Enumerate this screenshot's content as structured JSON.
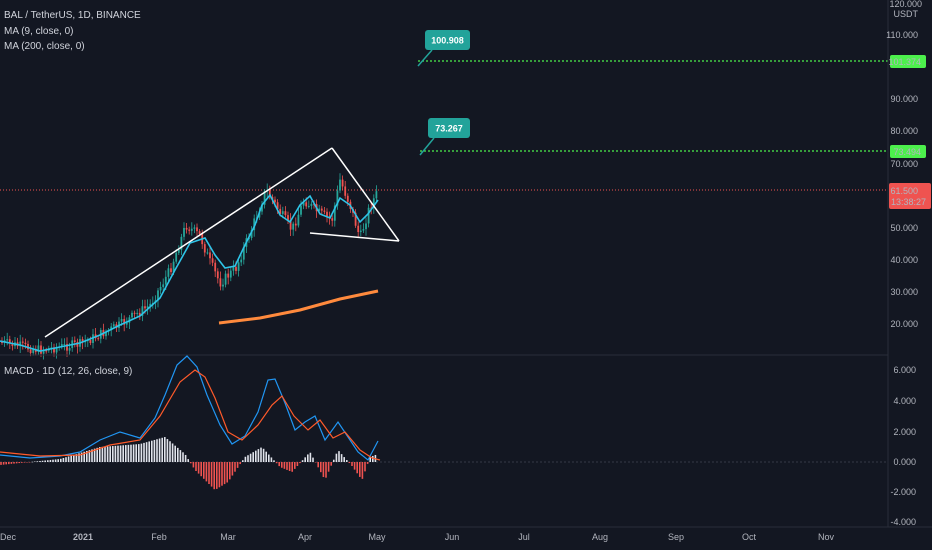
{
  "header": {
    "symbol": "BAL / TetherUS, 1D, BINANCE",
    "ma9": "MA (9, close, 0)",
    "ma200": "MA (200, close, 0)",
    "macd": "MACD · 1D (12, 26, close, 9)"
  },
  "price_axis": {
    "unit": "USDT",
    "ticks": [
      "120.000",
      "110.000",
      "90.000",
      "80.000",
      "70.000",
      "50.000",
      "40.000",
      "30.000",
      "20.000"
    ],
    "current_price": "61.500",
    "countdown": "13:38:27",
    "level_tags": [
      "101.374",
      "73.494"
    ]
  },
  "macd_axis": {
    "ticks": [
      "6.000",
      "4.000",
      "2.000",
      "0.000",
      "-2.000",
      "-4.000"
    ]
  },
  "time_axis": {
    "labels": [
      "Dec",
      "2021",
      "Feb",
      "Mar",
      "Apr",
      "May",
      "Jun",
      "Jul",
      "Aug",
      "Sep",
      "Oct",
      "Nov"
    ]
  },
  "callouts": [
    {
      "label": "100.908",
      "value": 100.908
    },
    {
      "label": "73.267",
      "value": 73.267
    }
  ],
  "colors": {
    "background": "#131722",
    "up": "#26a69a",
    "down": "#ef5350",
    "ma9": "#2ec4e8",
    "ma200": "#ff8a3d",
    "target_line": "#4cf04c",
    "callout": "#22a39a",
    "macd_line": "#2196f3",
    "signal_line": "#ff5a2a"
  },
  "chart_data": [
    {
      "type": "candlestick",
      "title": "BAL / TetherUS, 1D, BINANCE",
      "y_unit": "USDT",
      "ylim": [
        11,
        122
      ],
      "x_range": [
        "2020-11-23",
        "2021-11-25"
      ],
      "grid": false,
      "series": [
        {
          "name": "MA (9, close, 0)",
          "x": [
            "2020-11-23",
            "2020-12-10",
            "2020-12-25",
            "2021-01-10",
            "2021-01-25",
            "2021-02-10",
            "2021-02-25",
            "2021-03-05",
            "2021-03-15",
            "2021-03-25",
            "2021-04-05",
            "2021-04-15",
            "2021-04-25",
            "2021-05-01"
          ],
          "values": [
            16,
            13.5,
            15,
            18,
            24,
            37,
            49,
            42,
            44,
            56,
            55,
            56,
            54,
            56
          ]
        },
        {
          "name": "MA (200, close, 0)",
          "x": [
            "2021-02-28",
            "2021-03-20",
            "2021-04-10",
            "2021-05-01"
          ],
          "values": [
            20,
            22,
            25,
            30
          ]
        }
      ],
      "key_levels": [
        {
          "label": "61.500",
          "value": 61.5
        },
        {
          "label": "73.494",
          "value": 73.494
        },
        {
          "label": "101.374",
          "value": 101.374
        }
      ],
      "annotations": [
        {
          "label": "100.908",
          "value": 100.908
        },
        {
          "label": "73.267",
          "value": 73.267
        }
      ]
    },
    {
      "type": "line",
      "title": "MACD · 1D (12, 26, close, 9)",
      "ylim": [
        -4,
        7
      ],
      "x": [
        "2020-12-01",
        "2021-01-01",
        "2021-01-20",
        "2021-02-05",
        "2021-02-17",
        "2021-03-01",
        "2021-03-15",
        "2021-04-01",
        "2021-04-15",
        "2021-05-01"
      ],
      "series": [
        {
          "name": "MACD",
          "values": [
            0.3,
            0.4,
            0.9,
            3,
            6.5,
            1.6,
            2,
            5.1,
            2.7,
            1.2
          ]
        },
        {
          "name": "Signal",
          "values": [
            0.2,
            0.2,
            0.7,
            2,
            6,
            2.5,
            1.5,
            4.5,
            3,
            0.5
          ]
        }
      ],
      "histogram": {
        "x": [
          "2021-01-20",
          "2021-02-10",
          "2021-03-01",
          "2021-03-25",
          "2021-04-20"
        ],
        "values": [
          0.5,
          1.5,
          -2,
          1.3,
          -1.4
        ]
      }
    }
  ]
}
